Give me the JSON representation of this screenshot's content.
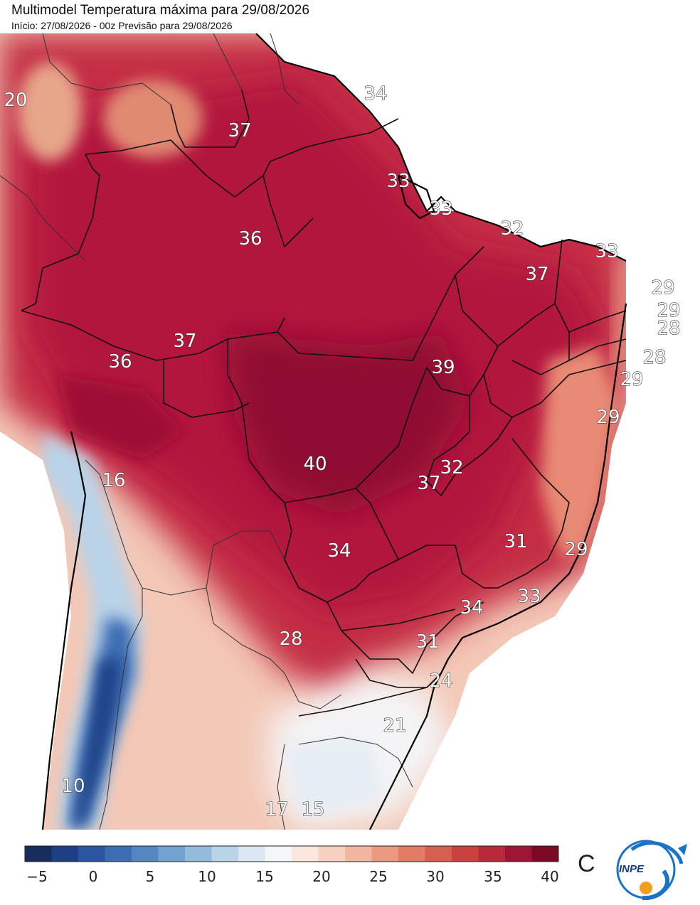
{
  "header": {
    "title": "Multimodel Temperatura máxima para 29/08/2026",
    "subtitle": "Início: 27/08/2026 - 00z  Previsão para 29/08/2026"
  },
  "map": {
    "region": "Brazil / South America",
    "temperature_labels": [
      "20",
      "34",
      "37",
      "33",
      "33",
      "36",
      "32",
      "33",
      "37",
      "29",
      "29",
      "28",
      "37",
      "36",
      "28",
      "39",
      "29",
      "29",
      "32",
      "40",
      "37",
      "16",
      "31",
      "29",
      "34",
      "33",
      "34",
      "28",
      "31",
      "24",
      "21",
      "10",
      "17",
      "15"
    ]
  },
  "colorbar": {
    "ticks": [
      "−5",
      "0",
      "5",
      "10",
      "15",
      "20",
      "25",
      "30",
      "35",
      "40"
    ],
    "unit": "C",
    "colors": [
      "#182c5e",
      "#1e3f86",
      "#2b55a0",
      "#3c6db3",
      "#5487c2",
      "#73a2d0",
      "#94bbdc",
      "#b9d3e8",
      "#dbe8f2",
      "#f4f6f8",
      "#fbe7df",
      "#f6d0c0",
      "#f0b6a0",
      "#e99a80",
      "#e07d64",
      "#d5604f",
      "#c8423f",
      "#b82a3a",
      "#9f1535",
      "#7c0a26"
    ]
  },
  "logo": {
    "text": "INPE"
  },
  "colors": {
    "hot": "#b0163d",
    "very_hot": "#8f0b30",
    "cold": "#1e3f86"
  }
}
